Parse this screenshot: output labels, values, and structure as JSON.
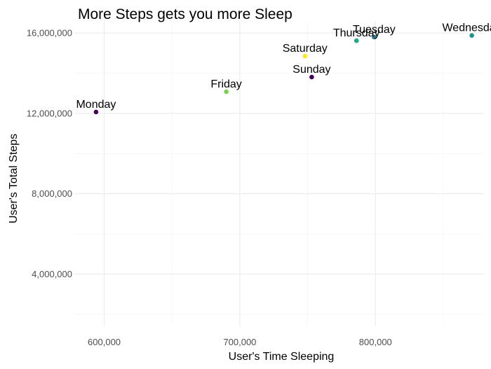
{
  "chart_data": {
    "type": "scatter",
    "title": "More Steps gets you more Sleep",
    "xlabel": "User's Time Sleeping",
    "ylabel": "User's Total Steps",
    "xlim": [
      578000,
      880000
    ],
    "ylim": [
      1400000,
      16600000
    ],
    "x_ticks": [
      600000,
      700000,
      800000
    ],
    "x_tick_labels": [
      "600,000",
      "700,000",
      "800,000"
    ],
    "y_ticks": [
      4000000,
      8000000,
      12000000,
      16000000
    ],
    "y_tick_labels": [
      "4,000,000",
      "8,000,000",
      "12,000,000",
      "16,000,000"
    ],
    "grid": true,
    "legend": "none",
    "points": [
      {
        "label": "Monday",
        "x": 594000,
        "y": 12070000,
        "color": "#440154"
      },
      {
        "label": "Friday",
        "x": 690000,
        "y": 13080000,
        "color": "#7AD151"
      },
      {
        "label": "Saturday",
        "x": 748000,
        "y": 14850000,
        "color": "#FDE725"
      },
      {
        "label": "Sunday",
        "x": 753000,
        "y": 13810000,
        "color": "#440154"
      },
      {
        "label": "Thursday",
        "x": 786000,
        "y": 15620000,
        "color": "#22A884"
      },
      {
        "label": "Tuesday",
        "x": 799000,
        "y": 15800000,
        "color": "#2A788E"
      },
      {
        "label": "Wednesday",
        "x": 871000,
        "y": 15880000,
        "color": "#21918C"
      }
    ]
  }
}
